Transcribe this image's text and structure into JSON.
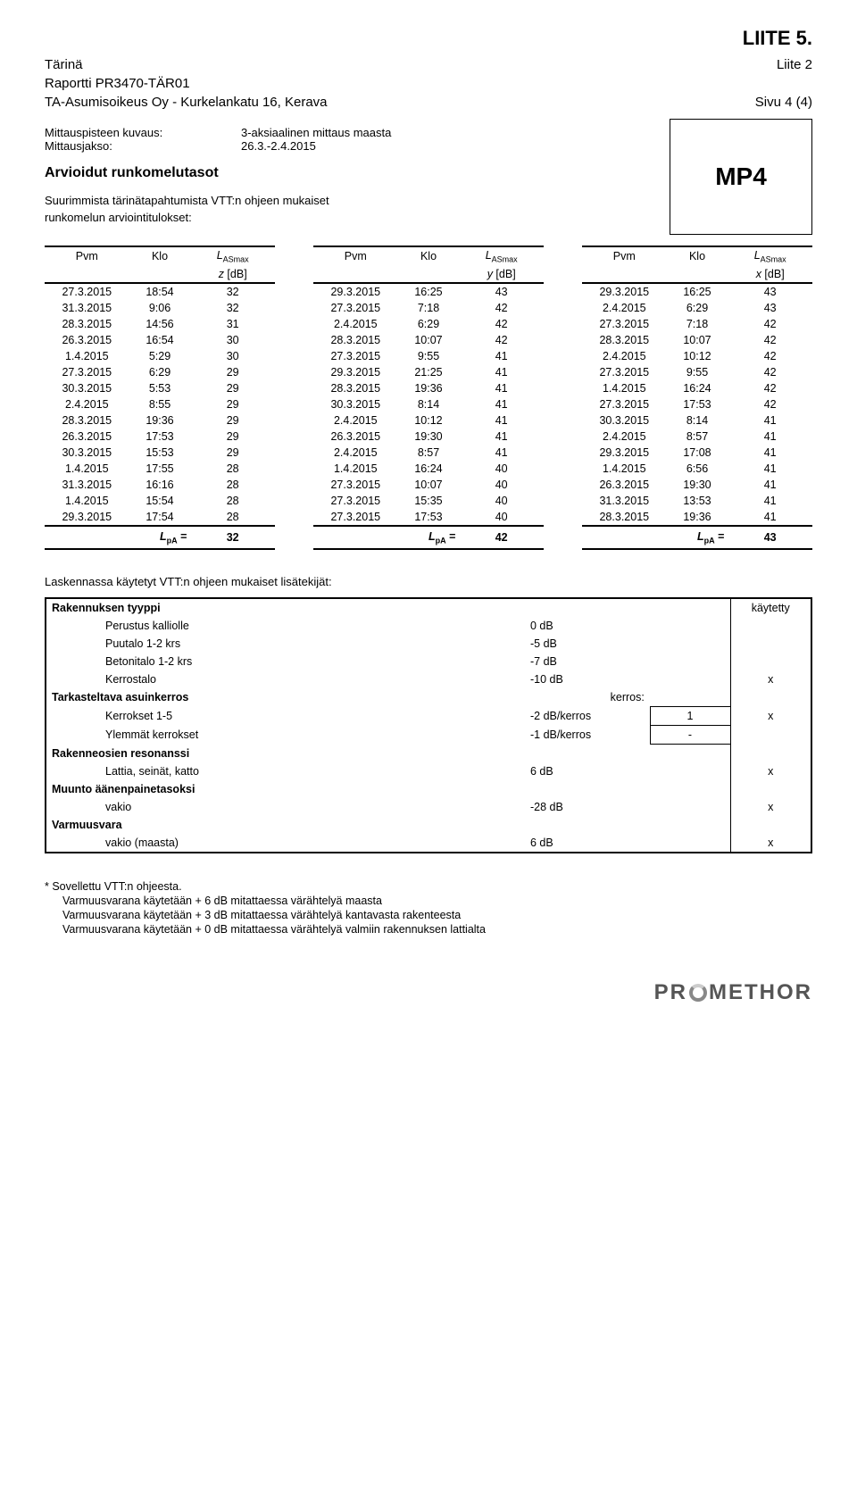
{
  "top_right": "LIITE 5.",
  "hdr": {
    "l1a": "Tärinä",
    "l1b": "Liite 2",
    "l2a": "Raportti PR3470-TÄR01",
    "l3a": "TA-Asumisoikeus Oy - Kurkelankatu 16, Kerava",
    "l3b": "Sivu 4 (4)"
  },
  "pair": {
    "l1a": "Mittauspisteen kuvaus:",
    "l1b": "3-aksiaalinen mittaus maasta",
    "l2a": "Mittausjakso:",
    "l2b": "26.3.-2.4.2015"
  },
  "arv_title": "Arvioidut runkomelutasot",
  "sub1": "Suurimmista tärinätapahtumista VTT:n ohjeen mukaiset",
  "sub2": "runkomelun arviointitulokset:",
  "mp": "MP4",
  "th": {
    "pvm": "Pvm",
    "klo": "Klo",
    "las": "L",
    "las_sub": "ASmax",
    "z": "z",
    "y": "y",
    "x": "x",
    "db": " [dB]"
  },
  "rows": [
    [
      [
        "27.3.2015",
        "18:54",
        "32"
      ],
      [
        "29.3.2015",
        "16:25",
        "43"
      ],
      [
        "29.3.2015",
        "16:25",
        "43"
      ]
    ],
    [
      [
        "31.3.2015",
        "9:06",
        "32"
      ],
      [
        "27.3.2015",
        "7:18",
        "42"
      ],
      [
        "2.4.2015",
        "6:29",
        "43"
      ]
    ],
    [
      [
        "28.3.2015",
        "14:56",
        "31"
      ],
      [
        "2.4.2015",
        "6:29",
        "42"
      ],
      [
        "27.3.2015",
        "7:18",
        "42"
      ]
    ],
    [
      [
        "26.3.2015",
        "16:54",
        "30"
      ],
      [
        "28.3.2015",
        "10:07",
        "42"
      ],
      [
        "28.3.2015",
        "10:07",
        "42"
      ]
    ],
    [
      [
        "1.4.2015",
        "5:29",
        "30"
      ],
      [
        "27.3.2015",
        "9:55",
        "41"
      ],
      [
        "2.4.2015",
        "10:12",
        "42"
      ]
    ],
    [
      [
        "27.3.2015",
        "6:29",
        "29"
      ],
      [
        "29.3.2015",
        "21:25",
        "41"
      ],
      [
        "27.3.2015",
        "9:55",
        "42"
      ]
    ],
    [
      [
        "30.3.2015",
        "5:53",
        "29"
      ],
      [
        "28.3.2015",
        "19:36",
        "41"
      ],
      [
        "1.4.2015",
        "16:24",
        "42"
      ]
    ],
    [
      [
        "2.4.2015",
        "8:55",
        "29"
      ],
      [
        "30.3.2015",
        "8:14",
        "41"
      ],
      [
        "27.3.2015",
        "17:53",
        "42"
      ]
    ],
    [
      [
        "28.3.2015",
        "19:36",
        "29"
      ],
      [
        "2.4.2015",
        "10:12",
        "41"
      ],
      [
        "30.3.2015",
        "8:14",
        "41"
      ]
    ],
    [
      [
        "26.3.2015",
        "17:53",
        "29"
      ],
      [
        "26.3.2015",
        "19:30",
        "41"
      ],
      [
        "2.4.2015",
        "8:57",
        "41"
      ]
    ],
    [
      [
        "30.3.2015",
        "15:53",
        "29"
      ],
      [
        "2.4.2015",
        "8:57",
        "41"
      ],
      [
        "29.3.2015",
        "17:08",
        "41"
      ]
    ],
    [
      [
        "1.4.2015",
        "17:55",
        "28"
      ],
      [
        "1.4.2015",
        "16:24",
        "40"
      ],
      [
        "1.4.2015",
        "6:56",
        "41"
      ]
    ],
    [
      [
        "31.3.2015",
        "16:16",
        "28"
      ],
      [
        "27.3.2015",
        "10:07",
        "40"
      ],
      [
        "26.3.2015",
        "19:30",
        "41"
      ]
    ],
    [
      [
        "1.4.2015",
        "15:54",
        "28"
      ],
      [
        "27.3.2015",
        "15:35",
        "40"
      ],
      [
        "31.3.2015",
        "13:53",
        "41"
      ]
    ],
    [
      [
        "29.3.2015",
        "17:54",
        "28"
      ],
      [
        "27.3.2015",
        "17:53",
        "40"
      ],
      [
        "28.3.2015",
        "19:36",
        "41"
      ]
    ]
  ],
  "foot": {
    "label": "L",
    "label_sub": "pA",
    "eq": " =",
    "v1": "32",
    "v2": "42",
    "v3": "43"
  },
  "lisa_title": "Laskennassa käytetyt VTT:n ohjeen mukaiset lisätekijät:",
  "factors": {
    "h_type": "Rakennuksen tyyppi",
    "h_used": "käytetty",
    "t1": "Perustus kalliolle",
    "v1": "0 dB",
    "t2": "Puutalo 1-2 krs",
    "v2": "-5 dB",
    "t3": "Betonitalo 1-2 krs",
    "v3": "-7 dB",
    "t4": "Kerrostalo",
    "v4": "-10 dB",
    "c4": "x",
    "h_floor": "Tarkasteltava asuinkerros",
    "h_kerros": "kerros:",
    "t5": "Kerrokset 1-5",
    "v5": "-2 dB/kerros",
    "b5": "1",
    "c5": "x",
    "t6": "Ylemmät kerrokset",
    "v6": "-1 dB/kerros",
    "b6": "-",
    "h_res": "Rakenneosien resonanssi",
    "t7": "Lattia, seinät, katto",
    "v7": "6 dB",
    "c7": "x",
    "h_mu": "Muunto äänenpainetasoksi",
    "t8": "vakio",
    "v8": "-28 dB",
    "c8": "x",
    "h_var": "Varmuusvara",
    "t9": "vakio (maasta)",
    "v9": "6 dB",
    "c9": "x"
  },
  "footer": {
    "n0": "* Sovellettu VTT:n ohjeesta.",
    "n1": "Varmuusvarana käytetään + 6 dB mitattaessa värähtelyä maasta",
    "n2": "Varmuusvarana käytetään + 3 dB mitattaessa värähtelyä kantavasta rakenteesta",
    "n3": "Varmuusvarana käytetään + 0 dB mitattaessa värähtelyä valmiin rakennuksen lattialta"
  },
  "logo": {
    "pre": "PR",
    "post": "METHOR"
  }
}
